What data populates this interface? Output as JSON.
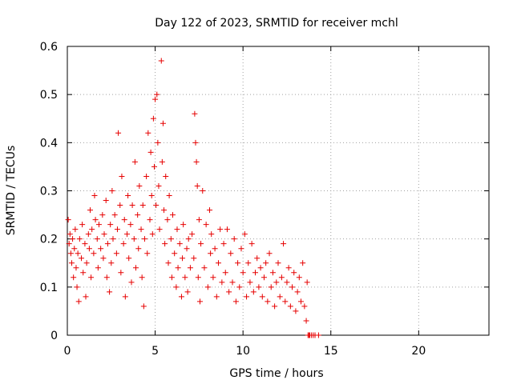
{
  "chart_data": {
    "type": "scatter",
    "title": "Day 122 of 2023, SRMTID for receiver mchl",
    "xlabel": "GPS time / hours",
    "ylabel": "SRMTID / TECUs",
    "xlim": [
      0,
      24
    ],
    "ylim": [
      0,
      0.6
    ],
    "x_ticks": [
      0,
      5,
      10,
      15,
      20
    ],
    "x_tick_labels": [
      "0",
      "5",
      "10",
      "15",
      "20"
    ],
    "y_ticks": [
      0,
      0.1,
      0.2,
      0.3,
      0.4,
      0.5,
      0.6
    ],
    "y_tick_labels": [
      "0",
      "0.1",
      "0.2",
      "0.3",
      "0.4",
      "0.5",
      "0.6"
    ],
    "grid": true,
    "marker": "plus",
    "color": "#e60000",
    "series": [
      {
        "name": "SRMTID",
        "points": [
          [
            0.05,
            0.24
          ],
          [
            0.1,
            0.19
          ],
          [
            0.15,
            0.21
          ],
          [
            0.2,
            0.17
          ],
          [
            0.25,
            0.15
          ],
          [
            0.3,
            0.2
          ],
          [
            0.35,
            0.12
          ],
          [
            0.4,
            0.18
          ],
          [
            0.45,
            0.22
          ],
          [
            0.5,
            0.14
          ],
          [
            0.55,
            0.1
          ],
          [
            0.6,
            0.17
          ],
          [
            0.65,
            0.07
          ],
          [
            0.7,
            0.2
          ],
          [
            0.8,
            0.16
          ],
          [
            0.85,
            0.23
          ],
          [
            0.9,
            0.13
          ],
          [
            1.0,
            0.19
          ],
          [
            1.05,
            0.08
          ],
          [
            1.1,
            0.15
          ],
          [
            1.2,
            0.21
          ],
          [
            1.25,
            0.18
          ],
          [
            1.3,
            0.26
          ],
          [
            1.35,
            0.12
          ],
          [
            1.4,
            0.22
          ],
          [
            1.5,
            0.17
          ],
          [
            1.55,
            0.29
          ],
          [
            1.6,
            0.24
          ],
          [
            1.7,
            0.2
          ],
          [
            1.75,
            0.14
          ],
          [
            1.8,
            0.23
          ],
          [
            1.9,
            0.18
          ],
          [
            2.0,
            0.25
          ],
          [
            2.05,
            0.16
          ],
          [
            2.1,
            0.21
          ],
          [
            2.2,
            0.28
          ],
          [
            2.25,
            0.12
          ],
          [
            2.3,
            0.19
          ],
          [
            2.4,
            0.09
          ],
          [
            2.45,
            0.23
          ],
          [
            2.5,
            0.15
          ],
          [
            2.55,
            0.3
          ],
          [
            2.6,
            0.2
          ],
          [
            2.7,
            0.25
          ],
          [
            2.8,
            0.17
          ],
          [
            2.85,
            0.22
          ],
          [
            2.9,
            0.42
          ],
          [
            3.0,
            0.27
          ],
          [
            3.05,
            0.13
          ],
          [
            3.1,
            0.33
          ],
          [
            3.2,
            0.19
          ],
          [
            3.25,
            0.24
          ],
          [
            3.3,
            0.08
          ],
          [
            3.4,
            0.21
          ],
          [
            3.45,
            0.29
          ],
          [
            3.5,
            0.16
          ],
          [
            3.6,
            0.23
          ],
          [
            3.65,
            0.11
          ],
          [
            3.7,
            0.27
          ],
          [
            3.8,
            0.2
          ],
          [
            3.85,
            0.36
          ],
          [
            3.9,
            0.14
          ],
          [
            4.0,
            0.25
          ],
          [
            4.05,
            0.18
          ],
          [
            4.1,
            0.31
          ],
          [
            4.2,
            0.22
          ],
          [
            4.25,
            0.12
          ],
          [
            4.3,
            0.27
          ],
          [
            4.35,
            0.06
          ],
          [
            4.4,
            0.2
          ],
          [
            4.5,
            0.33
          ],
          [
            4.55,
            0.17
          ],
          [
            4.6,
            0.42
          ],
          [
            4.7,
            0.24
          ],
          [
            4.75,
            0.38
          ],
          [
            4.8,
            0.29
          ],
          [
            4.85,
            0.21
          ],
          [
            4.9,
            0.45
          ],
          [
            4.95,
            0.35
          ],
          [
            5.0,
            0.49
          ],
          [
            5.05,
            0.27
          ],
          [
            5.1,
            0.5
          ],
          [
            5.15,
            0.4
          ],
          [
            5.2,
            0.31
          ],
          [
            5.25,
            0.22
          ],
          [
            5.35,
            0.57
          ],
          [
            5.4,
            0.36
          ],
          [
            5.45,
            0.44
          ],
          [
            5.5,
            0.26
          ],
          [
            5.55,
            0.19
          ],
          [
            5.6,
            0.33
          ],
          [
            5.7,
            0.24
          ],
          [
            5.75,
            0.15
          ],
          [
            5.8,
            0.29
          ],
          [
            5.9,
            0.2
          ],
          [
            5.95,
            0.12
          ],
          [
            6.0,
            0.25
          ],
          [
            6.1,
            0.17
          ],
          [
            6.2,
            0.1
          ],
          [
            6.25,
            0.22
          ],
          [
            6.3,
            0.14
          ],
          [
            6.4,
            0.19
          ],
          [
            6.5,
            0.08
          ],
          [
            6.55,
            0.16
          ],
          [
            6.6,
            0.23
          ],
          [
            6.7,
            0.12
          ],
          [
            6.8,
            0.18
          ],
          [
            6.85,
            0.09
          ],
          [
            6.9,
            0.2
          ],
          [
            7.0,
            0.14
          ],
          [
            7.1,
            0.21
          ],
          [
            7.2,
            0.16
          ],
          [
            7.25,
            0.46
          ],
          [
            7.3,
            0.4
          ],
          [
            7.35,
            0.36
          ],
          [
            7.4,
            0.31
          ],
          [
            7.45,
            0.12
          ],
          [
            7.5,
            0.24
          ],
          [
            7.55,
            0.07
          ],
          [
            7.6,
            0.19
          ],
          [
            7.7,
            0.3
          ],
          [
            7.8,
            0.14
          ],
          [
            7.9,
            0.23
          ],
          [
            8.0,
            0.1
          ],
          [
            8.1,
            0.26
          ],
          [
            8.15,
            0.17
          ],
          [
            8.2,
            0.21
          ],
          [
            8.3,
            0.12
          ],
          [
            8.4,
            0.18
          ],
          [
            8.5,
            0.08
          ],
          [
            8.6,
            0.15
          ],
          [
            8.7,
            0.22
          ],
          [
            8.8,
            0.11
          ],
          [
            8.9,
            0.19
          ],
          [
            9.0,
            0.13
          ],
          [
            9.1,
            0.22
          ],
          [
            9.2,
            0.09
          ],
          [
            9.3,
            0.17
          ],
          [
            9.4,
            0.11
          ],
          [
            9.5,
            0.2
          ],
          [
            9.6,
            0.07
          ],
          [
            9.7,
            0.15
          ],
          [
            9.8,
            0.1
          ],
          [
            9.9,
            0.18
          ],
          [
            10.0,
            0.13
          ],
          [
            10.1,
            0.21
          ],
          [
            10.2,
            0.08
          ],
          [
            10.3,
            0.15
          ],
          [
            10.4,
            0.11
          ],
          [
            10.5,
            0.19
          ],
          [
            10.6,
            0.09
          ],
          [
            10.7,
            0.13
          ],
          [
            10.8,
            0.16
          ],
          [
            10.9,
            0.1
          ],
          [
            11.0,
            0.14
          ],
          [
            11.1,
            0.08
          ],
          [
            11.2,
            0.12
          ],
          [
            11.3,
            0.15
          ],
          [
            11.4,
            0.07
          ],
          [
            11.5,
            0.17
          ],
          [
            11.6,
            0.1
          ],
          [
            11.7,
            0.13
          ],
          [
            11.8,
            0.06
          ],
          [
            11.9,
            0.11
          ],
          [
            12.0,
            0.15
          ],
          [
            12.1,
            0.08
          ],
          [
            12.2,
            0.12
          ],
          [
            12.3,
            0.19
          ],
          [
            12.4,
            0.07
          ],
          [
            12.5,
            0.11
          ],
          [
            12.6,
            0.14
          ],
          [
            12.7,
            0.06
          ],
          [
            12.8,
            0.1
          ],
          [
            12.9,
            0.13
          ],
          [
            13.0,
            0.05
          ],
          [
            13.1,
            0.09
          ],
          [
            13.2,
            0.12
          ],
          [
            13.3,
            0.07
          ],
          [
            13.4,
            0.15
          ],
          [
            13.5,
            0.06
          ],
          [
            13.6,
            0.03
          ],
          [
            13.65,
            0.11
          ],
          [
            13.7,
            0.0
          ],
          [
            13.75,
            0.0
          ],
          [
            13.8,
            0.0
          ],
          [
            13.9,
            0.0
          ],
          [
            14.0,
            0.0
          ],
          [
            14.1,
            0.0
          ],
          [
            14.3,
            0.0
          ]
        ]
      }
    ]
  }
}
